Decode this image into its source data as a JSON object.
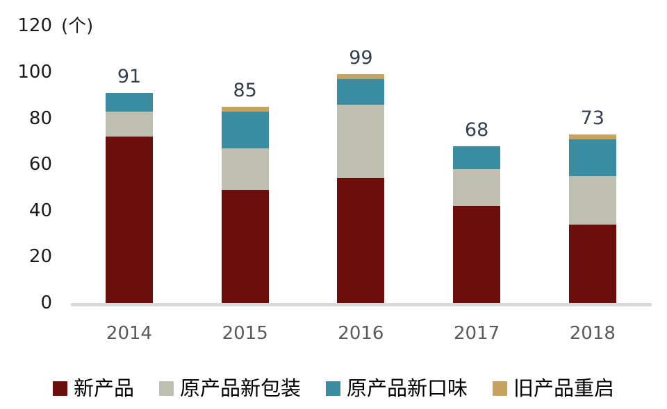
{
  "chart_data": {
    "type": "bar",
    "stacked": true,
    "unit_label": "(个)",
    "categories": [
      "2014",
      "2015",
      "2016",
      "2017",
      "2018"
    ],
    "series": [
      {
        "name": "新产品",
        "slug": "new-product",
        "color": "#6b0e0c",
        "values": [
          72,
          49,
          54,
          42,
          34
        ]
      },
      {
        "name": "原产品新包装",
        "slug": "original-product-new-packaging",
        "color": "#bfbfb1",
        "values": [
          11,
          18,
          32,
          16,
          21
        ]
      },
      {
        "name": "原产品新口味",
        "slug": "original-product-new-flavor",
        "color": "#3a8ca0",
        "values": [
          8,
          16,
          11,
          10,
          16
        ]
      },
      {
        "name": "旧产品重启",
        "slug": "old-product-relaunch",
        "color": "#c7a35f",
        "values": [
          0,
          2,
          2,
          0,
          2
        ]
      }
    ],
    "totals": [
      91,
      85,
      99,
      68,
      73
    ],
    "y_axis": {
      "min": 0,
      "max": 120,
      "step": 20,
      "ticks": [
        0,
        20,
        40,
        60,
        80,
        100,
        120
      ]
    },
    "grid": false,
    "legend_position": "bottom",
    "colors": {
      "total_label": "#333f50",
      "y_tick_label": "#1a1a1a",
      "x_tick_label": "#595959",
      "axis_line": "#d9d9d9",
      "background": "#ffffff"
    }
  }
}
